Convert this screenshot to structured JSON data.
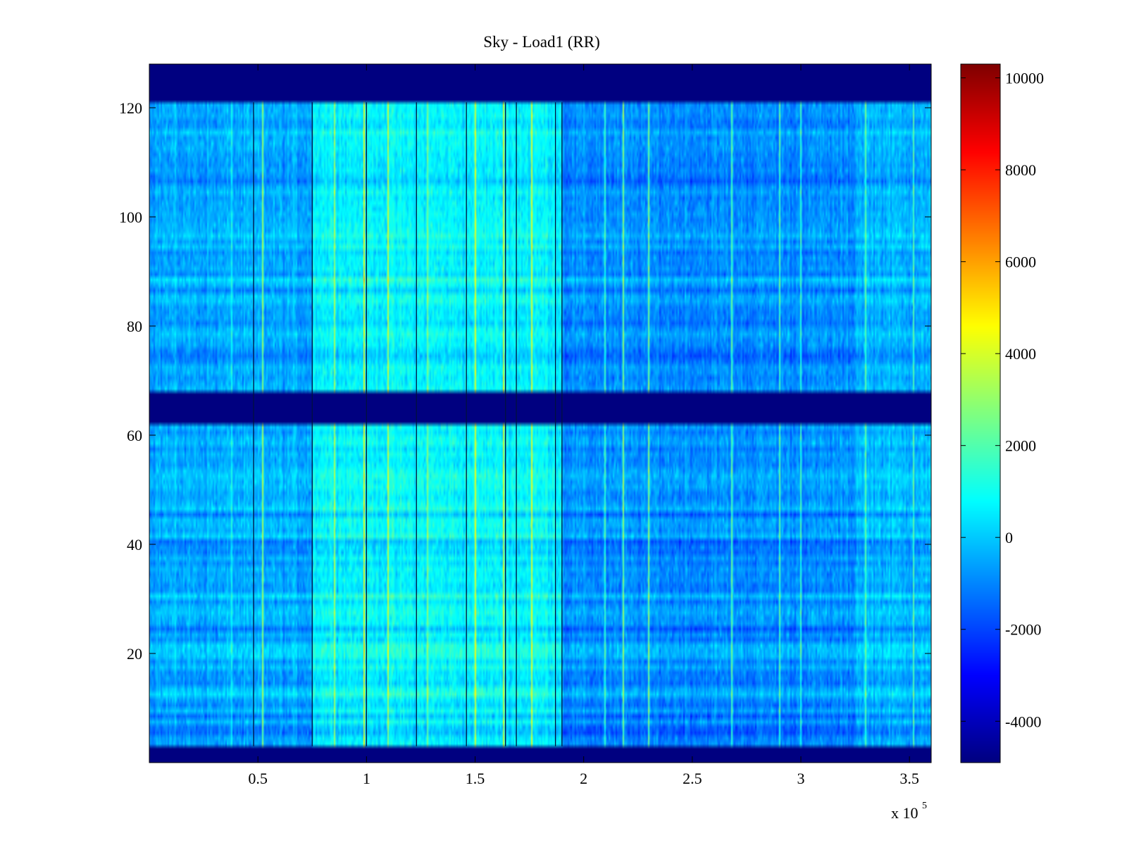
{
  "chart_data": {
    "type": "heatmap",
    "title": "Sky - Load1 (RR)",
    "xlabel": "",
    "ylabel": "",
    "x_multiplier_label": "x 10",
    "x_multiplier_exponent": "5",
    "xlim": [
      0,
      360000
    ],
    "ylim": [
      0,
      128
    ],
    "xticks": [
      {
        "value": 50000,
        "label": "0.5"
      },
      {
        "value": 100000,
        "label": "1"
      },
      {
        "value": 150000,
        "label": "1.5"
      },
      {
        "value": 200000,
        "label": "2"
      },
      {
        "value": 250000,
        "label": "2.5"
      },
      {
        "value": 300000,
        "label": "3"
      },
      {
        "value": 350000,
        "label": "3.5"
      }
    ],
    "yticks": [
      {
        "value": 20,
        "label": "20"
      },
      {
        "value": 40,
        "label": "40"
      },
      {
        "value": 60,
        "label": "60"
      },
      {
        "value": 80,
        "label": "80"
      },
      {
        "value": 100,
        "label": "100"
      },
      {
        "value": 120,
        "label": "120"
      }
    ],
    "colormap": "jet",
    "clim": [
      -4900,
      10300
    ],
    "colorbar_ticks": [
      {
        "value": 10000,
        "label": "10000"
      },
      {
        "value": 8000,
        "label": "8000"
      },
      {
        "value": 6000,
        "label": "6000"
      },
      {
        "value": 4000,
        "label": "4000"
      },
      {
        "value": 2000,
        "label": "2000"
      },
      {
        "value": 0,
        "label": "0"
      },
      {
        "value": -2000,
        "label": "-2000"
      },
      {
        "value": -4000,
        "label": "-4000"
      }
    ],
    "masked_rows": [
      {
        "from": 0,
        "to": 3,
        "value": -4900
      },
      {
        "from": 62,
        "to": 68,
        "value": -4900
      },
      {
        "from": 121,
        "to": 128,
        "value": -4900
      }
    ],
    "regions": [
      {
        "x_from": 0,
        "x_to": 75000,
        "mean": -500
      },
      {
        "x_from": 75000,
        "x_to": 190000,
        "mean": 700
      },
      {
        "x_from": 190000,
        "x_to": 325000,
        "mean": -900
      },
      {
        "x_from": 325000,
        "x_to": 360000,
        "mean": -300
      }
    ],
    "dark_vertical_lines_x": [
      48000,
      75000,
      100000,
      123000,
      146000,
      164000,
      169000,
      187000,
      190000
    ],
    "high_value_lines_x": [
      38000,
      52000,
      85000,
      99000,
      110000,
      128000,
      150000,
      163000,
      176000,
      210000,
      218000,
      230000,
      268000,
      290000,
      300000,
      330000,
      352000
    ],
    "grid": false,
    "legend": "none"
  }
}
